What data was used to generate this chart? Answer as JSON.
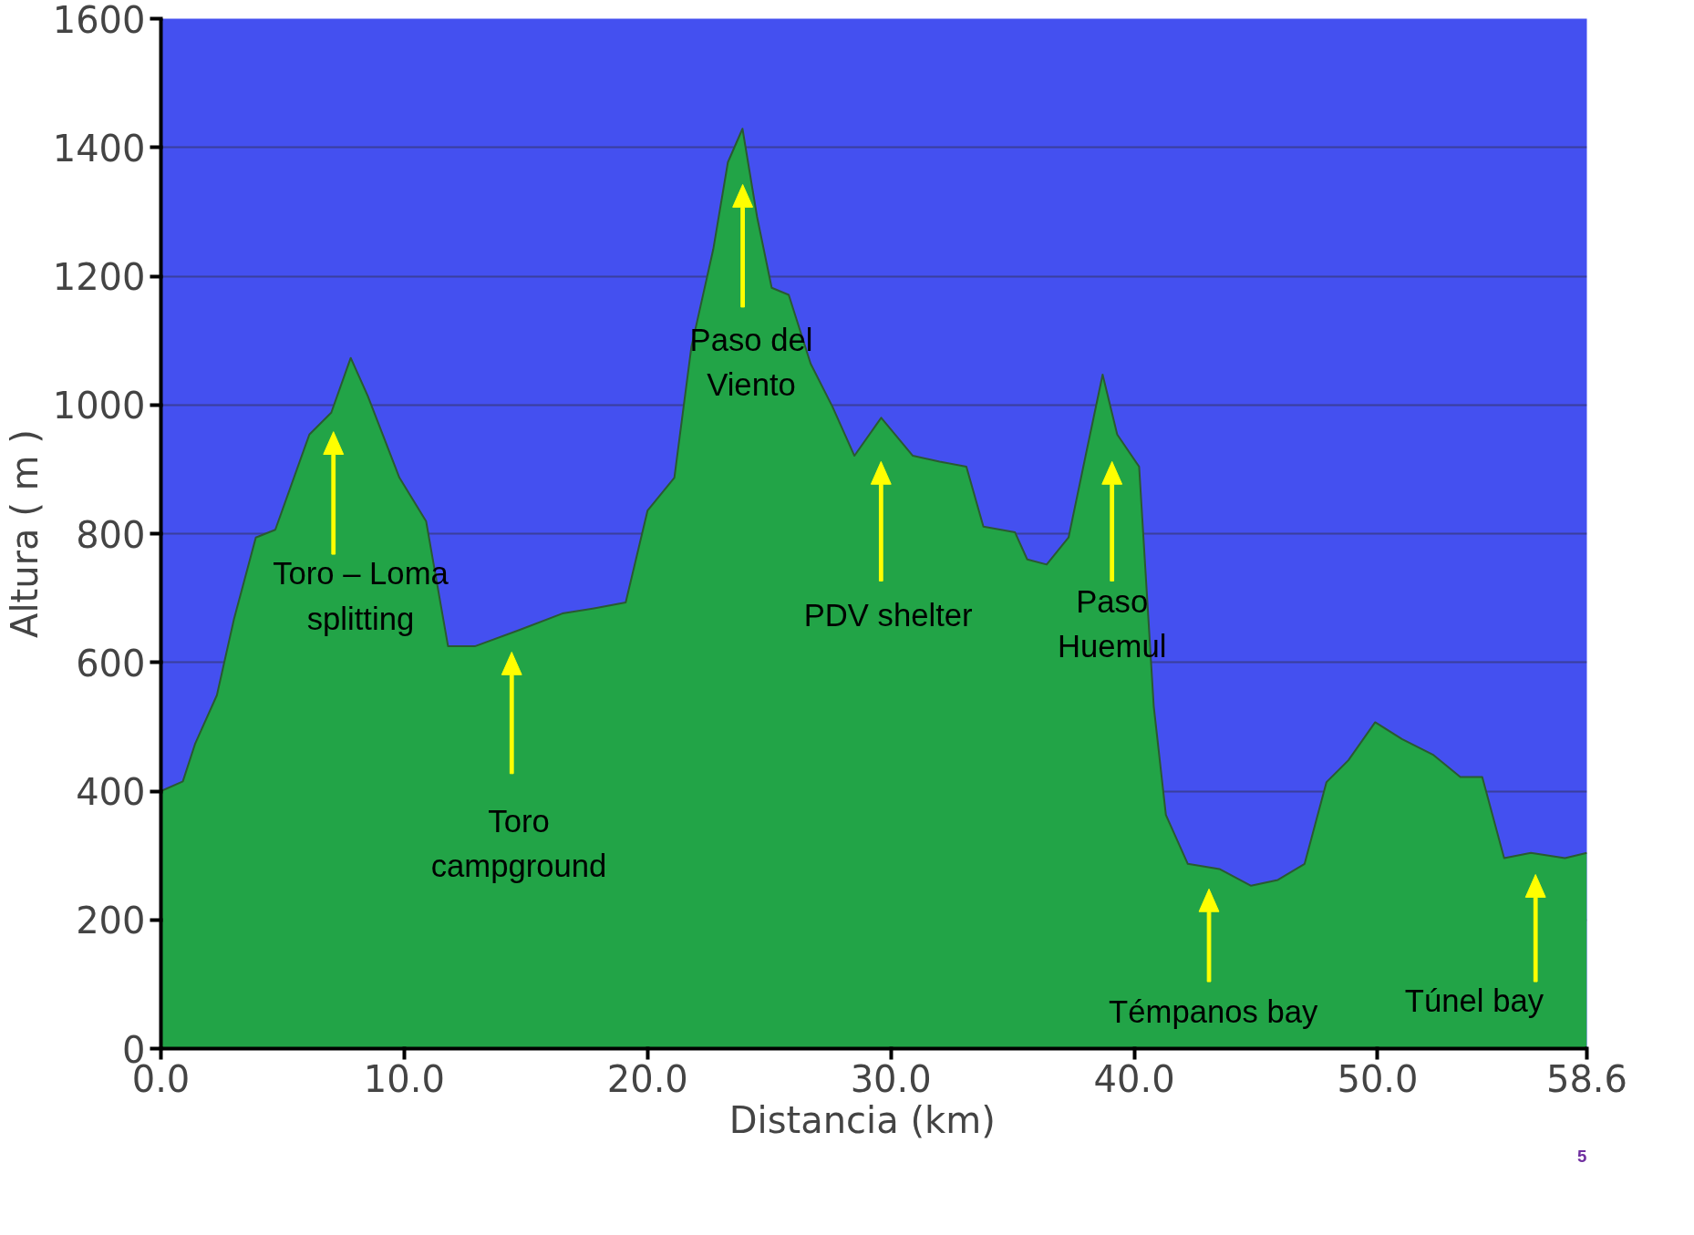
{
  "chart_data": {
    "type": "area",
    "xlabel": "Distancia   (km)",
    "ylabel": "Altura ( m )",
    "x": [
      0,
      0.9,
      1.4,
      2.3,
      3.0,
      3.9,
      4.7,
      6.1,
      7.0,
      7.8,
      8.5,
      9.8,
      10.9,
      11.8,
      12.9,
      14.7,
      16.5,
      17.8,
      19.1,
      20.0,
      21.1,
      21.8,
      22.7,
      23.3,
      23.9,
      24.5,
      25.1,
      25.8,
      26.7,
      27.6,
      28.5,
      29.6,
      30.9,
      32.0,
      33.1,
      33.8,
      35.1,
      35.6,
      36.4,
      37.3,
      38.0,
      38.7,
      39.3,
      40.2,
      40.8,
      41.3,
      42.2,
      43.5,
      44.8,
      45.9,
      47.0,
      47.9,
      48.8,
      49.9,
      51.0,
      52.3,
      53.4,
      54.3,
      55.2,
      56.3,
      57.7,
      58.6
    ],
    "series": [
      {
        "color": "#22a447",
        "values": [
          400,
          415,
          473,
          549,
          667,
          794,
          806,
          954,
          988,
          1073,
          1014,
          887,
          819,
          625,
          625,
          650,
          676,
          684,
          693,
          836,
          887,
          1090,
          1242,
          1377,
          1429,
          1292,
          1182,
          1171,
          1064,
          997,
          921,
          980,
          921,
          912,
          904,
          811,
          802,
          760,
          752,
          794,
          921,
          1047,
          954,
          904,
          532,
          363,
          287,
          279,
          253,
          262,
          287,
          414,
          448,
          507,
          481,
          456,
          422,
          422,
          296,
          304,
          296,
          304
        ]
      }
    ],
    "xlim": [
      0,
      58.6
    ],
    "ylim": [
      0,
      1600
    ],
    "xticks": [
      {
        "value": 0,
        "label": "0.0"
      },
      {
        "value": 10,
        "label": "10.0"
      },
      {
        "value": 20,
        "label": "20.0"
      },
      {
        "value": 30,
        "label": "30.0"
      },
      {
        "value": 40,
        "label": "40.0"
      },
      {
        "value": 50,
        "label": "50.0"
      },
      58.6
    ],
    "yticks": [
      0,
      200,
      400,
      600,
      800,
      1000,
      1200,
      1400,
      1600
    ],
    "grid": "y",
    "annotations": [
      "Toro – Loma\nsplitting",
      "Toro\ncampground",
      "Paso del\nViento",
      "PDV shelter",
      "Paso\nHuemul",
      "Témpanos bay",
      "Túnel bay",
      "5"
    ]
  }
}
